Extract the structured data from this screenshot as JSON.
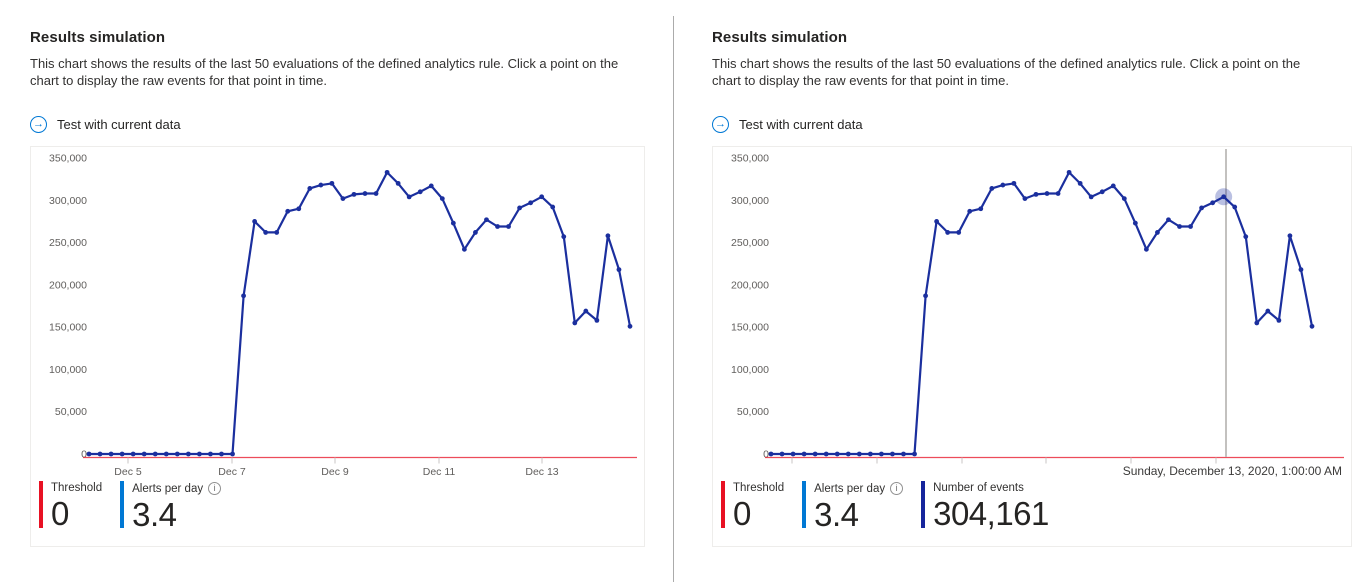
{
  "panels": [
    {
      "title": "Results simulation",
      "description_line1": "This chart shows the results of the last 50 evaluations of the defined analytics rule. Click a point on the",
      "description_line2": "chart to display the raw events for that point in time.",
      "action_label": "Test with current data",
      "legend": [
        {
          "label": "Threshold",
          "value": "0",
          "color": "#e81123"
        },
        {
          "label": "Alerts per day",
          "value": "3.4",
          "color": "#0078d4",
          "info": true
        }
      ]
    },
    {
      "title": "Results simulation",
      "description_line1": "This chart shows the results of the last 50 evaluations of the defined analytics rule. Click a point on the",
      "description_line2": "chart to display the raw events for that point in time.",
      "action_label": "Test with current data",
      "selected_date_label": "Sunday, December 13, 2020, 1:00:00 AM",
      "legend": [
        {
          "label": "Threshold",
          "value": "0",
          "color": "#e81123"
        },
        {
          "label": "Alerts per day",
          "value": "3.4",
          "color": "#0078d4",
          "info": true
        },
        {
          "label": "Number of events",
          "value": "304,161",
          "color": "#16259c"
        }
      ]
    }
  ],
  "chart_data": {
    "type": "line",
    "title": "Results simulation",
    "series": [
      {
        "name": "Number of events",
        "color": "#1b2f9e",
        "values": [
          0,
          0,
          0,
          0,
          0,
          0,
          0,
          0,
          0,
          0,
          0,
          0,
          0,
          0,
          187000,
          275000,
          262000,
          262000,
          287000,
          290000,
          314000,
          318000,
          320000,
          302000,
          307000,
          308000,
          308000,
          333000,
          320000,
          304000,
          310000,
          317000,
          302000,
          273000,
          242000,
          262000,
          277000,
          269000,
          269000,
          291000,
          297000,
          304161,
          292000,
          257000,
          155000,
          169000,
          158000,
          258000,
          218000,
          151000
        ]
      }
    ],
    "ylim": [
      0,
      350000
    ],
    "y_tick_labels": [
      "350,000",
      "300,000",
      "250,000",
      "200,000",
      "150,000",
      "100,000",
      "50,000",
      "0"
    ],
    "x_tick_labels": [
      "Dec 5",
      "Dec 7",
      "Dec 9",
      "Dec 11",
      "Dec 13"
    ],
    "grid": "off",
    "threshold_value": 0,
    "threshold_color": "#e81123",
    "selected_index": 41,
    "selected_value_label": "304,161",
    "selected_date_label": "Sunday, December 13, 2020, 1:00:00 AM"
  }
}
